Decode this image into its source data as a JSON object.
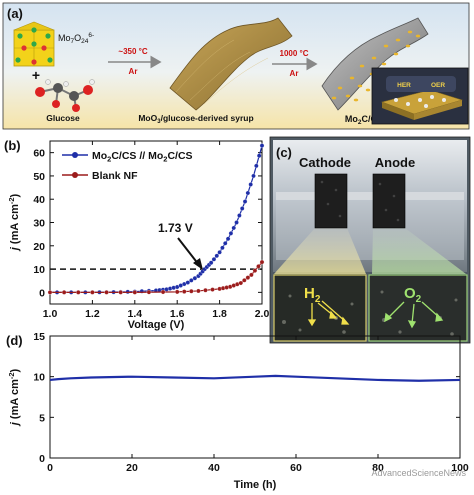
{
  "panel_a": {
    "label": "(a)",
    "mo_formula": "Mo",
    "mo_sub1": "7",
    "mo_o": "O",
    "mo_sub2": "24",
    "mo_sup": "6-",
    "plus": "+",
    "glucose": "Glucose",
    "step1_temp": "~350 °C",
    "step1_gas": "Ar",
    "step2_temp": "1000 °C",
    "step2_gas": "Ar",
    "syrup_label_pre": "MoO",
    "syrup_label_sub": "3",
    "syrup_label_post": "/glucose-derived syrup",
    "product_pre": "Mo",
    "product_sub": "2",
    "product_post": "C/CS",
    "inset_her": "HER",
    "inset_oer": "OER",
    "colors": {
      "bg_top": "#d9e6f2",
      "bg_bottom": "#f5e9b8",
      "accent_red": "#cc1111"
    }
  },
  "panel_b": {
    "label": "(b)",
    "legend": [
      {
        "pre": "Mo",
        "sub": "2",
        "mid": "C/CS // Mo",
        "sub2": "2",
        "post": "C/CS",
        "color": "#1f2fa8"
      },
      {
        "pre": "Blank NF",
        "color": "#9c1c1c"
      }
    ],
    "annotation": "1.73 V",
    "xlabel": "Voltage (V)",
    "ylabel_italic": "j",
    "ylabel_rest": " (mA cm",
    "ylabel_sup": "-2",
    "ylabel_end": ")"
  },
  "panel_c": {
    "label": "(c)",
    "cathode": "Cathode",
    "anode": "Anode",
    "h2_main": "H",
    "h2_sub": "2",
    "o2_main": "O",
    "o2_sub": "2"
  },
  "panel_d": {
    "label": "(d)",
    "xlabel": "Time (h)",
    "ylabel_italic": "j",
    "ylabel_rest": " (mA cm",
    "ylabel_sup": "-2",
    "ylabel_end": ")",
    "watermark": "AdvancedScienceNews"
  },
  "chart_data": [
    {
      "type": "scatter",
      "panel": "b",
      "xlabel": "Voltage (V)",
      "ylabel": "j (mA cm-2)",
      "xlim": [
        1.0,
        2.0
      ],
      "ylim": [
        -5,
        65
      ],
      "xticks": [
        "1.0",
        "1.2",
        "1.4",
        "1.6",
        "1.8",
        "2.0"
      ],
      "yticks": [
        "0",
        "10",
        "20",
        "30",
        "40",
        "50",
        "60"
      ],
      "reference_line_y": 10,
      "annotation": {
        "text": "1.73 V",
        "x": 1.73,
        "y": 10
      },
      "series": [
        {
          "name": "Mo2C/CS // Mo2C/CS",
          "color": "#1f2fa8",
          "x": [
            1.0,
            1.1,
            1.2,
            1.3,
            1.4,
            1.5,
            1.55,
            1.6,
            1.65,
            1.7,
            1.73,
            1.76,
            1.8,
            1.84,
            1.88,
            1.92,
            1.96,
            2.0
          ],
          "y": [
            0,
            0,
            0,
            0.1,
            0.3,
            0.8,
            1.3,
            2.3,
            4.2,
            7.0,
            10.0,
            12.7,
            17.2,
            23.0,
            30.0,
            39.0,
            50.0,
            63.0
          ]
        },
        {
          "name": "Blank NF",
          "color": "#9c1c1c",
          "x": [
            1.0,
            1.2,
            1.4,
            1.6,
            1.7,
            1.8,
            1.85,
            1.9,
            1.95,
            2.0
          ],
          "y": [
            0,
            0,
            0,
            0.2,
            0.6,
            1.5,
            2.4,
            4.0,
            7.5,
            13.0
          ]
        }
      ]
    },
    {
      "type": "line",
      "panel": "d",
      "xlabel": "Time (h)",
      "ylabel": "j (mA cm-2)",
      "xlim": [
        0,
        100
      ],
      "ylim": [
        0,
        15
      ],
      "xticks": [
        "0",
        "20",
        "40",
        "60",
        "80",
        "100"
      ],
      "yticks": [
        "0",
        "5",
        "10",
        "15"
      ],
      "series": [
        {
          "color": "#1f2fa8",
          "x": [
            0,
            2,
            5,
            10,
            20,
            30,
            40,
            50,
            55,
            60,
            70,
            80,
            90,
            100
          ],
          "y": [
            9.6,
            9.7,
            9.8,
            9.9,
            10.0,
            9.9,
            9.8,
            10.0,
            10.1,
            10.0,
            9.8,
            9.6,
            9.5,
            9.6
          ]
        }
      ]
    }
  ]
}
